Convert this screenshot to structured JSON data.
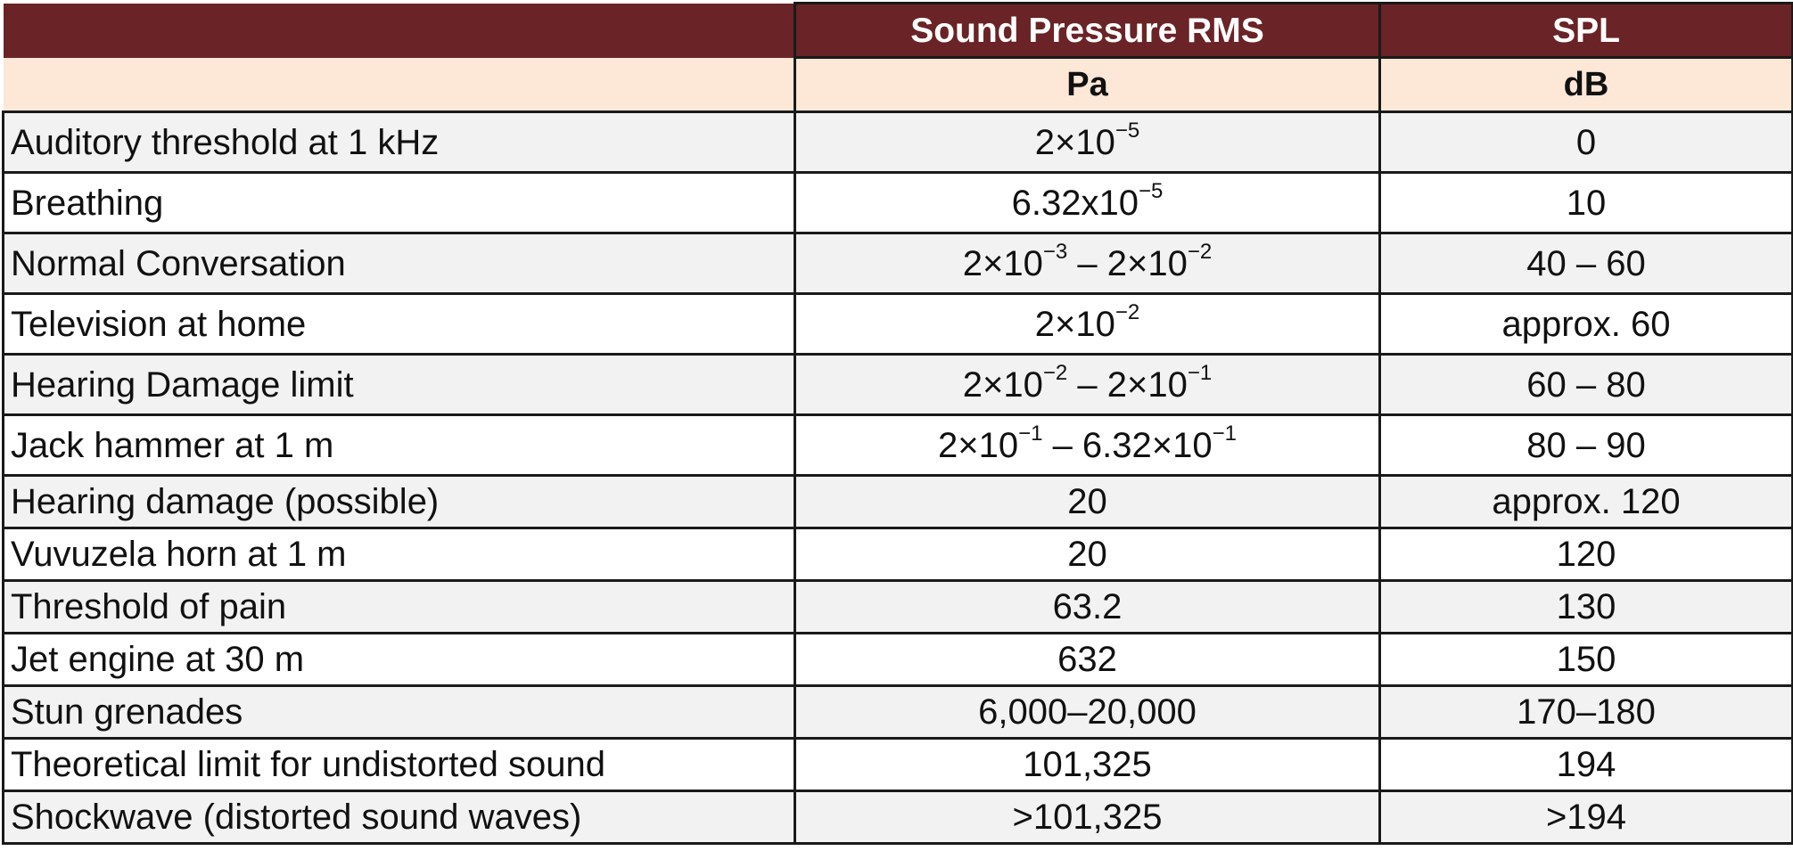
{
  "header": {
    "col_pressure_title": "Sound Pressure RMS",
    "col_spl_title": "SPL",
    "col_pressure_unit": "Pa",
    "col_spl_unit": "dB"
  },
  "colors": {
    "header_bg": "#6a2326",
    "unit_row_bg": "#fde7d7",
    "shaded_row_bg": "#f2f2f2",
    "border": "#1a1a1a"
  },
  "rows": [
    {
      "label": "Auditory threshold at 1 kHz",
      "pressure": [
        {
          "t": "2×10",
          "s": "−5"
        }
      ],
      "spl": "0"
    },
    {
      "label": "Breathing",
      "pressure": [
        {
          "t": "6.32x10",
          "s": "−5"
        }
      ],
      "spl": "10"
    },
    {
      "label": "Normal Conversation",
      "pressure": [
        {
          "t": "2×10",
          "s": "−3"
        },
        {
          "t": " – 2×10",
          "s": "−2"
        }
      ],
      "spl": "40 – 60"
    },
    {
      "label": "Television at home",
      "pressure": [
        {
          "t": "2×10",
          "s": "−2"
        }
      ],
      "spl": "approx. 60"
    },
    {
      "label": "Hearing Damage limit",
      "pressure": [
        {
          "t": "2×10",
          "s": "−2"
        },
        {
          "t": " – 2×10",
          "s": "−1"
        }
      ],
      "spl": "60 – 80"
    },
    {
      "label": "Jack hammer at 1 m",
      "pressure": [
        {
          "t": "2×10",
          "s": "−1"
        },
        {
          "t": " – 6.32×10",
          "s": "−1"
        }
      ],
      "spl": "80 – 90"
    },
    {
      "label": "Hearing damage (possible)",
      "pressure": [
        {
          "t": "20",
          "s": ""
        }
      ],
      "spl": "approx. 120"
    },
    {
      "label": "Vuvuzela horn at 1 m",
      "pressure": [
        {
          "t": "20",
          "s": ""
        }
      ],
      "spl": "120"
    },
    {
      "label": "Threshold of pain",
      "pressure": [
        {
          "t": "63.2",
          "s": ""
        }
      ],
      "spl": "130"
    },
    {
      "label": "Jet engine at 30 m",
      "pressure": [
        {
          "t": "632",
          "s": ""
        }
      ],
      "spl": "150"
    },
    {
      "label": "Stun grenades",
      "pressure": [
        {
          "t": "6,000–20,000",
          "s": ""
        }
      ],
      "spl": "170–180"
    },
    {
      "label": "Theoretical limit for undistorted sound",
      "pressure": [
        {
          "t": "101,325",
          "s": ""
        }
      ],
      "spl": "194"
    },
    {
      "label": "Shockwave (distorted sound waves)",
      "pressure": [
        {
          "t": ">101,325",
          "s": ""
        }
      ],
      "spl": ">194"
    }
  ]
}
